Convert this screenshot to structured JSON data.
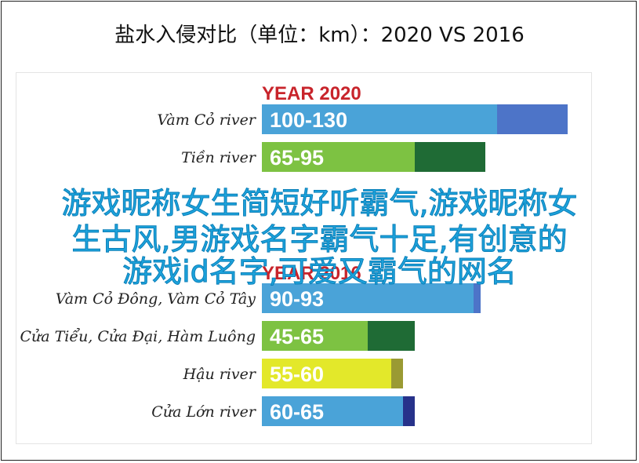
{
  "header": {
    "title": "盐水入侵对比（单位：km）：2020 VS 2016"
  },
  "overlay": {
    "lines": [
      "游戏昵称女生简短好听霸气,游戏昵称女",
      "生古风,男游戏名字霸气十足,有创意的",
      "游戏id名字,可爱又霸气的网名"
    ]
  },
  "chart_data": [
    {
      "type": "bar",
      "group_title": "YEAR 2020",
      "categories": [
        "Vàm Cỏ river",
        "Tiền river"
      ],
      "series": [
        {
          "labels": [
            "100-130",
            "65-95"
          ],
          "values": [
            100,
            65
          ],
          "ranges": [
            [
              100,
              130
            ],
            [
              65,
              95
            ]
          ]
        }
      ],
      "colors": {
        "base": [
          "#4aa3d8",
          "#7dc242"
        ],
        "extent": [
          "#4d74c8",
          "#1f6b35"
        ]
      }
    },
    {
      "type": "bar",
      "group_title": "YEAR 2016",
      "categories": [
        "Vàm Cỏ Đông, Vàm Cỏ Tây",
        "Cửa Tiểu, Cửa Đại, Hàm Luông",
        "Hậu river",
        "Cửa Lớn river"
      ],
      "series": [
        {
          "labels": [
            "90-93",
            "45-65",
            "55-60",
            "60-65"
          ],
          "values": [
            90,
            45,
            55,
            60
          ],
          "ranges": [
            [
              90,
              93
            ],
            [
              45,
              65
            ],
            [
              55,
              60
            ],
            [
              60,
              65
            ]
          ]
        }
      ],
      "colors": {
        "base": [
          "#4aa3d8",
          "#7dc242",
          "#e3e82a",
          "#4aa3d8"
        ],
        "extent": [
          "#4d74c8",
          "#1f6b35",
          "#9a9a33",
          "#27328a"
        ]
      }
    }
  ]
}
